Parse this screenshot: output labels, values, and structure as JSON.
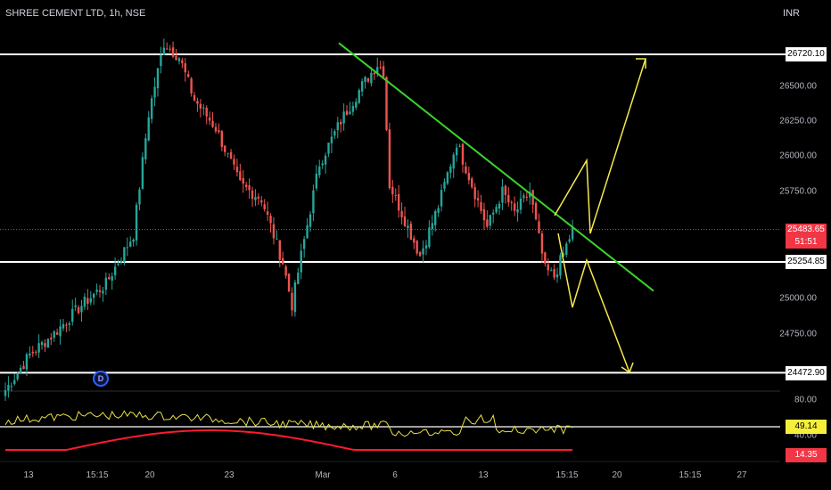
{
  "header": {
    "title": "SHREE CEMENT LTD, 1h, NSE",
    "currency": "INR"
  },
  "price_axis": {
    "ticks": [
      "26500.00",
      "26250.00",
      "26000.00",
      "25750.00",
      "25000.00",
      "24750.00"
    ],
    "levels": [
      "26720.10",
      "25254.85",
      "24472.90"
    ],
    "last_price": "25483.65",
    "countdown": "51:51"
  },
  "time_axis": {
    "ticks": [
      "13",
      "15:15",
      "20",
      "23",
      "Mar",
      "6",
      "13",
      "15:15",
      "20",
      "15:15",
      "27"
    ]
  },
  "oscillator": {
    "ticks": [
      "80.00",
      "40.00"
    ],
    "value_yellow": "49.14",
    "value_red": "14.35"
  },
  "markers": {
    "dividend": "D"
  },
  "colors": {
    "up": "#26a69a",
    "down": "#ef5350",
    "trendline": "#3bd22c",
    "projection": "#f5e94b",
    "price_badge": "#f23645",
    "osc_yellow": "#e8e046",
    "osc_red": "#ff1a2e",
    "level_line": "#ffffff"
  },
  "chart_data": {
    "type": "candlestick",
    "symbol": "SHREE CEMENT LTD",
    "interval": "1h",
    "exchange": "NSE",
    "horizontal_levels": [
      26720.1,
      25254.85,
      24472.9
    ],
    "last_price": 25483.65,
    "waypoints": [
      {
        "i": 0,
        "p": 24350
      },
      {
        "i": 8,
        "p": 24600
      },
      {
        "i": 16,
        "p": 24750
      },
      {
        "i": 25,
        "p": 24950
      },
      {
        "i": 33,
        "p": 25100
      },
      {
        "i": 42,
        "p": 25450
      },
      {
        "i": 47,
        "p": 26300
      },
      {
        "i": 52,
        "p": 26800
      },
      {
        "i": 57,
        "p": 26700
      },
      {
        "i": 62,
        "p": 26400
      },
      {
        "i": 69,
        "p": 26200
      },
      {
        "i": 77,
        "p": 25800
      },
      {
        "i": 84,
        "p": 25700
      },
      {
        "i": 91,
        "p": 25250
      },
      {
        "i": 94,
        "p": 24950
      },
      {
        "i": 97,
        "p": 25300
      },
      {
        "i": 103,
        "p": 25950
      },
      {
        "i": 110,
        "p": 26250
      },
      {
        "i": 117,
        "p": 26500
      },
      {
        "i": 122,
        "p": 26650
      },
      {
        "i": 124,
        "p": 26600
      },
      {
        "i": 126,
        "p": 25800
      },
      {
        "i": 132,
        "p": 25500
      },
      {
        "i": 136,
        "p": 25300
      },
      {
        "i": 142,
        "p": 25650
      },
      {
        "i": 148,
        "p": 26100
      },
      {
        "i": 153,
        "p": 25800
      },
      {
        "i": 158,
        "p": 25500
      },
      {
        "i": 163,
        "p": 25750
      },
      {
        "i": 167,
        "p": 25600
      },
      {
        "i": 172,
        "p": 25750
      },
      {
        "i": 177,
        "p": 25200
      },
      {
        "i": 180,
        "p": 25150
      },
      {
        "i": 186,
        "p": 25480
      }
    ],
    "trendline": [
      [
        26800,
        0.379
      ],
      [
        25050,
        0.736
      ]
    ],
    "oscillator": {
      "yellow_last": 49.14,
      "red_last": 14.35,
      "scale_ticks": [
        80,
        40
      ]
    }
  }
}
